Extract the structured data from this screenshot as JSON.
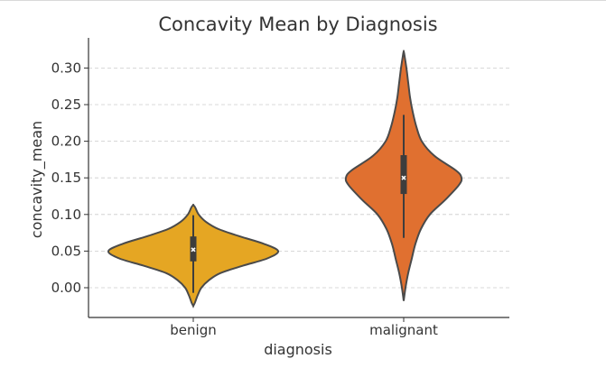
{
  "chart_data": {
    "type": "violin",
    "title": "Concavity Mean by Diagnosis",
    "xlabel": "diagnosis",
    "ylabel": "concavity_mean",
    "categories": [
      "benign",
      "malignant"
    ],
    "ylim": [
      -0.04,
      0.34
    ],
    "yticks": [
      0.0,
      0.05,
      0.1,
      0.15,
      0.2,
      0.25,
      0.3
    ],
    "ytick_labels": [
      "0.00",
      "0.05",
      "0.10",
      "0.15",
      "0.20",
      "0.25",
      "0.30"
    ],
    "grid": "horizontal-dashed",
    "series": [
      {
        "category": "benign",
        "color": "#E5A623",
        "median": 0.052,
        "q1": 0.036,
        "q3": 0.07,
        "whisker_low": -0.007,
        "whisker_high": 0.099,
        "kde_min": -0.025,
        "kde_max": 0.113,
        "density": [
          [
            -0.025,
            0.0
          ],
          [
            -0.02,
            0.02
          ],
          [
            -0.01,
            0.05
          ],
          [
            0.0,
            0.09
          ],
          [
            0.01,
            0.17
          ],
          [
            0.02,
            0.3
          ],
          [
            0.03,
            0.55
          ],
          [
            0.04,
            0.82
          ],
          [
            0.05,
            0.94
          ],
          [
            0.06,
            0.78
          ],
          [
            0.07,
            0.52
          ],
          [
            0.08,
            0.28
          ],
          [
            0.09,
            0.14
          ],
          [
            0.1,
            0.06
          ],
          [
            0.11,
            0.02
          ],
          [
            0.113,
            0.0
          ]
        ]
      },
      {
        "category": "malignant",
        "color": "#E07030",
        "median": 0.15,
        "q1": 0.128,
        "q3": 0.181,
        "whisker_low": 0.068,
        "whisker_high": 0.236,
        "kde_min": -0.018,
        "kde_max": 0.323,
        "density": [
          [
            -0.018,
            0.0
          ],
          [
            0.0,
            0.02
          ],
          [
            0.02,
            0.05
          ],
          [
            0.04,
            0.09
          ],
          [
            0.06,
            0.13
          ],
          [
            0.08,
            0.19
          ],
          [
            0.1,
            0.29
          ],
          [
            0.12,
            0.46
          ],
          [
            0.14,
            0.61
          ],
          [
            0.15,
            0.64
          ],
          [
            0.16,
            0.58
          ],
          [
            0.18,
            0.34
          ],
          [
            0.2,
            0.2
          ],
          [
            0.22,
            0.14
          ],
          [
            0.24,
            0.1
          ],
          [
            0.26,
            0.07
          ],
          [
            0.28,
            0.05
          ],
          [
            0.3,
            0.03
          ],
          [
            0.32,
            0.005
          ],
          [
            0.323,
            0.0
          ]
        ]
      }
    ]
  }
}
